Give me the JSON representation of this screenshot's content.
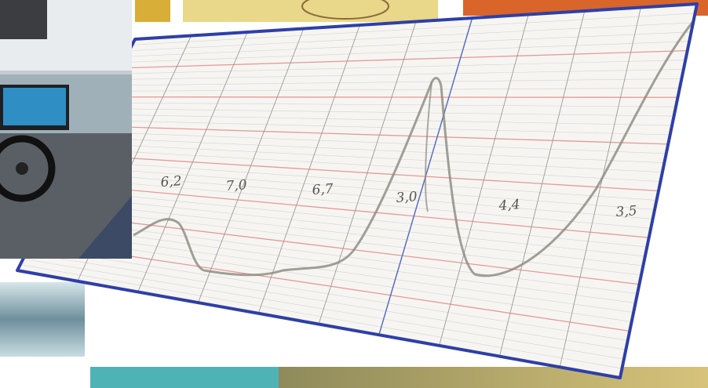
{
  "photo": {
    "chart_paper": {
      "annotations": [
        "6,2",
        "7,0",
        "6,7",
        "3,0",
        "4,4",
        "3,5"
      ]
    }
  }
}
